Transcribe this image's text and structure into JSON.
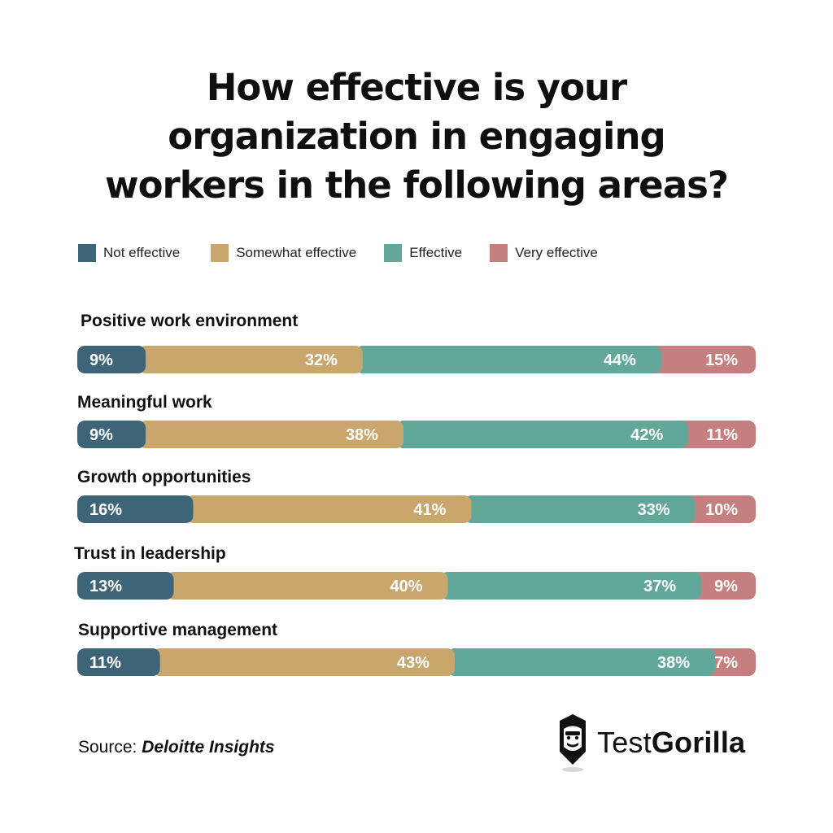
{
  "title_lines": [
    "How effective is your",
    "organization in engaging",
    "workers in the following areas?"
  ],
  "legend": [
    {
      "label": "Not effective",
      "color": "#3e6477"
    },
    {
      "label": "Somewhat effective",
      "color": "#c9a66b"
    },
    {
      "label": "Effective",
      "color": "#62a89a"
    },
    {
      "label": "Very effective",
      "color": "#c47f7e"
    }
  ],
  "chart_data": {
    "type": "bar",
    "orientation": "horizontal",
    "stacked": true,
    "title": "How effective is your organization in engaging workers in the following areas?",
    "categories": [
      "Positive work environment",
      "Meaningful work",
      "Growth opportunities",
      "Trust in leadership",
      "Supportive management"
    ],
    "series": [
      {
        "name": "Not effective",
        "color": "#3e6477",
        "values": [
          9,
          9,
          16,
          13,
          11
        ]
      },
      {
        "name": "Somewhat effective",
        "color": "#c9a66b",
        "values": [
          32,
          38,
          41,
          40,
          43
        ]
      },
      {
        "name": "Effective",
        "color": "#62a89a",
        "values": [
          44,
          42,
          33,
          37,
          38
        ]
      },
      {
        "name": "Very effective",
        "color": "#c47f7e",
        "values": [
          15,
          11,
          10,
          9,
          7
        ]
      }
    ],
    "data_labels": [
      [
        "9%",
        "32%",
        "44%",
        "15%"
      ],
      [
        "9%",
        "38%",
        "42%",
        "11%"
      ],
      [
        "16%",
        "41%",
        "33%",
        "10%"
      ],
      [
        "13%",
        "40%",
        "37%",
        "9%"
      ],
      [
        "11%",
        "43%",
        "38%",
        "7%"
      ]
    ],
    "legend_position": "top-left",
    "grid": false
  },
  "source": {
    "prefix": "Source: ",
    "name": "Deloitte Insights"
  },
  "logo": {
    "part1": "Test",
    "part2": "Gorilla",
    "icon": "gorilla-pencil-icon"
  }
}
